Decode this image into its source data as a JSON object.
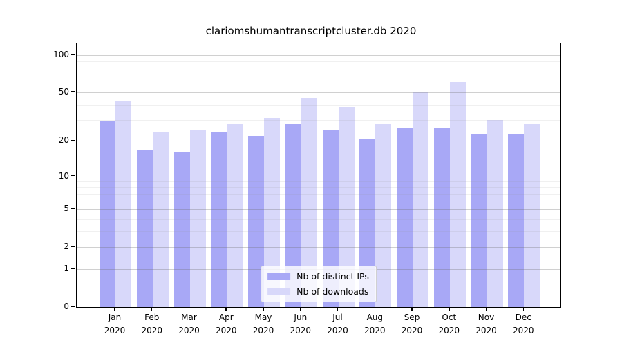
{
  "window": {
    "background": "#ffffff"
  },
  "chart_data": {
    "type": "bar",
    "title": "clariomshumantranscriptcluster.db 2020",
    "categories": [
      "Jan",
      "Feb",
      "Mar",
      "Apr",
      "May",
      "Jun",
      "Jul",
      "Aug",
      "Sep",
      "Oct",
      "Nov",
      "Dec"
    ],
    "category_year": "2020",
    "xlabel": "",
    "ylabel": "",
    "yscale": "log1p",
    "ylim": [
      0,
      125
    ],
    "grid": "horizontal",
    "legend_position": "lower center",
    "y_major_ticks": [
      0,
      1,
      2,
      5,
      10,
      20,
      50,
      100
    ],
    "y_minor_ticks": [
      3,
      4,
      6,
      7,
      8,
      9,
      30,
      40,
      60,
      70,
      80,
      90
    ],
    "series": [
      {
        "name": "Nb of distinct IPs",
        "color": "#a8a8f6",
        "values": [
          29,
          17,
          16,
          24,
          22,
          28,
          25,
          21,
          26,
          26,
          23,
          23
        ]
      },
      {
        "name": "Nb of downloads",
        "color": "#d8d8fa",
        "values": [
          43,
          24,
          25,
          28,
          31,
          45,
          38,
          28,
          51,
          61,
          30,
          28
        ]
      }
    ],
    "axis_color": "#000000",
    "tick_label_color": "#000000"
  }
}
